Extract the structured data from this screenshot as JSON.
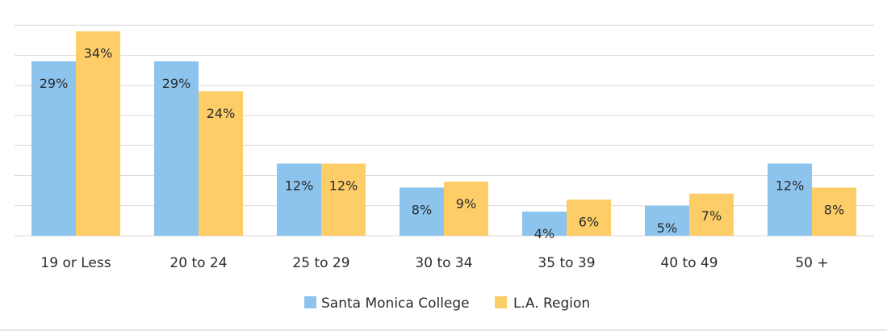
{
  "chart_data": {
    "type": "bar",
    "title": "",
    "xlabel": "",
    "ylabel": "",
    "ylim": [
      0,
      35
    ],
    "grid": true,
    "legend_position": "bottom-center",
    "categories": [
      "19 or Less",
      "20 to 24",
      "25 to 29",
      "30 to 34",
      "35 to 39",
      "40 to 49",
      "50 +"
    ],
    "series": [
      {
        "name": "Santa Monica College",
        "color": "#8cc4ee",
        "values": [
          29,
          29,
          12,
          8,
          4,
          5,
          12
        ],
        "labels": [
          "29%",
          "29%",
          "12%",
          "8%",
          "4%",
          "5%",
          "12%"
        ]
      },
      {
        "name": "L.A. Region",
        "color": "#fdcd68",
        "values": [
          34,
          24,
          12,
          9,
          6,
          7,
          8
        ],
        "labels": [
          "34%",
          "24%",
          "12%",
          "9%",
          "6%",
          "7%",
          "8%"
        ]
      }
    ]
  }
}
